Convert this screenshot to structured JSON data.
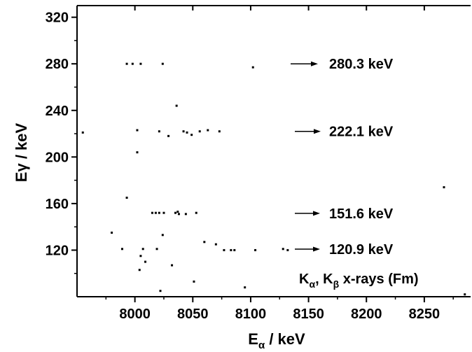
{
  "chart_data": {
    "type": "scatter",
    "title": "",
    "xlabel": {
      "main": "E",
      "sub": "α",
      "rest": " / keV"
    },
    "ylabel": "Eγ / keV",
    "xlim": [
      7950,
      8290
    ],
    "ylim": [
      80,
      330
    ],
    "x_ticks": [
      8000,
      8050,
      8100,
      8150,
      8200,
      8250
    ],
    "y_ticks": [
      120,
      160,
      200,
      240,
      280,
      320
    ],
    "grid": false,
    "points": [
      {
        "x": 7993,
        "y": 280
      },
      {
        "x": 7998,
        "y": 280
      },
      {
        "x": 8005,
        "y": 280
      },
      {
        "x": 8024,
        "y": 280
      },
      {
        "x": 8102,
        "y": 277
      },
      {
        "x": 8036,
        "y": 244
      },
      {
        "x": 7955,
        "y": 221
      },
      {
        "x": 8002,
        "y": 223
      },
      {
        "x": 8021,
        "y": 222
      },
      {
        "x": 8042,
        "y": 222
      },
      {
        "x": 8045,
        "y": 221
      },
      {
        "x": 8049,
        "y": 219
      },
      {
        "x": 8056,
        "y": 222
      },
      {
        "x": 8063,
        "y": 223
      },
      {
        "x": 8073,
        "y": 222
      },
      {
        "x": 8029,
        "y": 218
      },
      {
        "x": 8002,
        "y": 204
      },
      {
        "x": 7993,
        "y": 165
      },
      {
        "x": 8015,
        "y": 152
      },
      {
        "x": 8018,
        "y": 152
      },
      {
        "x": 8021,
        "y": 152
      },
      {
        "x": 8025,
        "y": 152
      },
      {
        "x": 8035,
        "y": 152
      },
      {
        "x": 8037,
        "y": 153
      },
      {
        "x": 8038,
        "y": 151
      },
      {
        "x": 8044,
        "y": 151
      },
      {
        "x": 8053,
        "y": 152
      },
      {
        "x": 8267,
        "y": 174
      },
      {
        "x": 7980,
        "y": 135
      },
      {
        "x": 8024,
        "y": 133
      },
      {
        "x": 8060,
        "y": 127
      },
      {
        "x": 8070,
        "y": 125
      },
      {
        "x": 7989,
        "y": 121
      },
      {
        "x": 8007,
        "y": 121
      },
      {
        "x": 8019,
        "y": 121
      },
      {
        "x": 8077,
        "y": 120
      },
      {
        "x": 8083,
        "y": 120
      },
      {
        "x": 8086,
        "y": 120
      },
      {
        "x": 8104,
        "y": 120
      },
      {
        "x": 8128,
        "y": 121
      },
      {
        "x": 8132,
        "y": 120
      },
      {
        "x": 8005,
        "y": 115
      },
      {
        "x": 8009,
        "y": 110
      },
      {
        "x": 8032,
        "y": 107
      },
      {
        "x": 8004,
        "y": 103
      },
      {
        "x": 8051,
        "y": 93
      },
      {
        "x": 8022,
        "y": 85
      },
      {
        "x": 8095,
        "y": 88
      },
      {
        "x": 8285,
        "y": 82
      }
    ],
    "annotations": [
      {
        "label": "280.3 keV",
        "y": 280
      },
      {
        "label": "222.1 keV",
        "y": 222
      },
      {
        "label": "151.6 keV",
        "y": 151.6
      },
      {
        "label": "120.9 keV",
        "y": 120.9
      }
    ],
    "xray_label": {
      "k": "K",
      "alpha_sub": "α",
      "sep": ", K",
      "beta_sub": "β",
      "rest": " x-rays (Fm)"
    }
  }
}
